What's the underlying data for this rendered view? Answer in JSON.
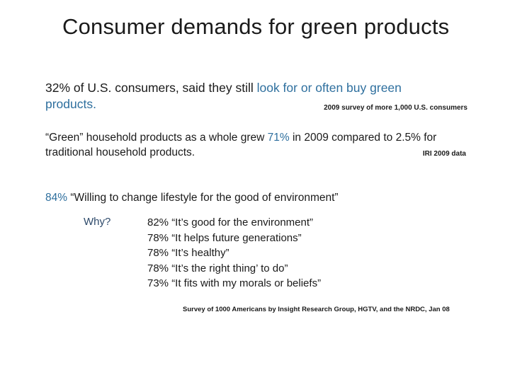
{
  "title": "Consumer demands for green products",
  "stat1": {
    "lead": "32% of U.S. consumers, said they still ",
    "highlight": "look for or often buy green",
    "tail": "products.",
    "source": "2009 survey of more 1,000 U.S. consumers"
  },
  "stat2": {
    "lead": "“Green” household products as a whole grew ",
    "highlight": "71%",
    "tail": "  in 2009 compared to 2.5% for traditional household products.",
    "source": "IRI 2009 data"
  },
  "stat3": {
    "percent": "84%",
    "quote": " “Willing to change lifestyle for the good of environment”"
  },
  "why_label": "Why?",
  "reasons": [
    "82% “It’s good for the environment”",
    "78% “It helps future generations”",
    "78% “It’s healthy”",
    "78% “It’s the right thing’ to do”",
    "73% “It fits with my morals or beliefs”"
  ],
  "survey_note": "Survey of 1000 Americans by Insight Research Group, HGTV, and the NRDC, Jan 08"
}
